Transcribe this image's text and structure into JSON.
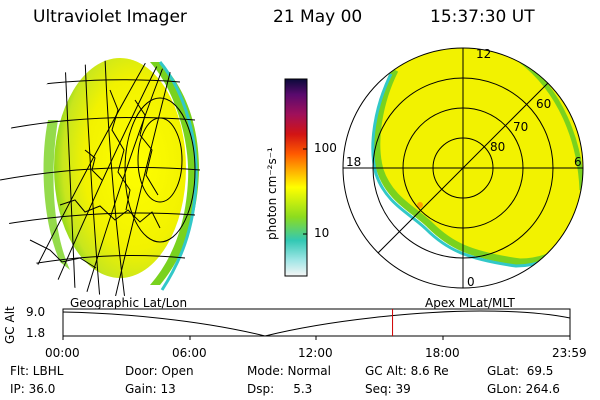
{
  "header": {
    "instrument": "Ultraviolet Imager",
    "date": "21 May 00",
    "time": "15:37:30 UT"
  },
  "colorbar": {
    "label": "photon cm⁻²s⁻¹",
    "ticks": [
      "100",
      "10"
    ],
    "scale": "log"
  },
  "left_panel": {
    "caption": "Geographic Lat/Lon"
  },
  "right_panel": {
    "caption": "Apex MLat/MLT",
    "lat_labels": [
      "60",
      "70",
      "80"
    ],
    "mlt_labels": {
      "top": "12",
      "left": "18",
      "right": "6",
      "bottom": "0"
    }
  },
  "timeline": {
    "ylabel": "GC Alt",
    "yticks": [
      "9.0",
      "1.8"
    ],
    "xticks": [
      "00:00",
      "06:00",
      "12:00",
      "18:00",
      "23:59"
    ],
    "current_time_fraction": 0.65,
    "marker_color": "#d00000"
  },
  "info": {
    "row1": [
      "Flt: LBHL",
      "Door: Open",
      "Mode: Normal",
      "GC Alt: 8.6 Re",
      "GLat:  69.5"
    ],
    "row2": [
      "IP: 36.0",
      "Gain: 13",
      "Dsp:     5.3",
      "Seq: 39",
      "GLon: 264.6"
    ]
  },
  "colors": {
    "aurora_yellow": "#f2f200",
    "aurora_green": "#79d21e",
    "edge_cyan": "#32c8c8",
    "bar_top": "#0a0a3a",
    "bar_red": "#d21414",
    "bar_orange": "#ffa000"
  }
}
